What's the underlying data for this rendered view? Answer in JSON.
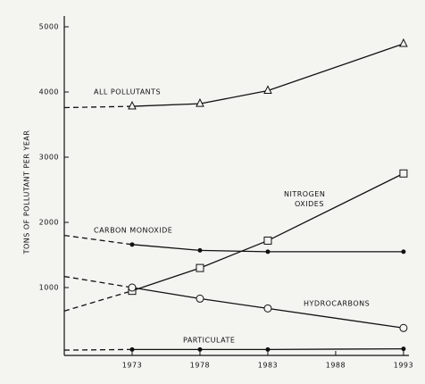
{
  "chart_data": {
    "type": "line",
    "y_label": "TONS OF POLLUTANT PER YEAR",
    "x": [
      1968,
      1973,
      1978,
      1983,
      1993
    ],
    "xlim": [
      1968,
      1993.4
    ],
    "xticks": [
      1973,
      1978,
      1983,
      1988,
      1993
    ],
    "ylim": [
      0,
      5000
    ],
    "yticks": [
      1000,
      2000,
      3000,
      4000,
      5000
    ],
    "dashed_before": 1973,
    "series": [
      {
        "name": "ALL POLLUTANTS",
        "color": "#111111",
        "marker": "triangle",
        "values": [
          3760,
          3780,
          3820,
          4020,
          4740
        ]
      },
      {
        "name": "CARBON MONOXIDE",
        "color": "#111111",
        "marker": "dot",
        "values": [
          1800,
          1660,
          1570,
          1550,
          1550
        ]
      },
      {
        "name": "NITROGEN OXIDES",
        "color": "#111111",
        "marker": "square",
        "values": [
          640,
          950,
          1300,
          1720,
          2750
        ]
      },
      {
        "name": "HYDROCARBONS",
        "color": "#111111",
        "marker": "circle",
        "values": [
          1170,
          1000,
          830,
          680,
          380
        ]
      },
      {
        "name": "PARTICULATE",
        "color": "#111111",
        "marker": "dot",
        "values": [
          40,
          50,
          50,
          50,
          60
        ]
      }
    ]
  }
}
